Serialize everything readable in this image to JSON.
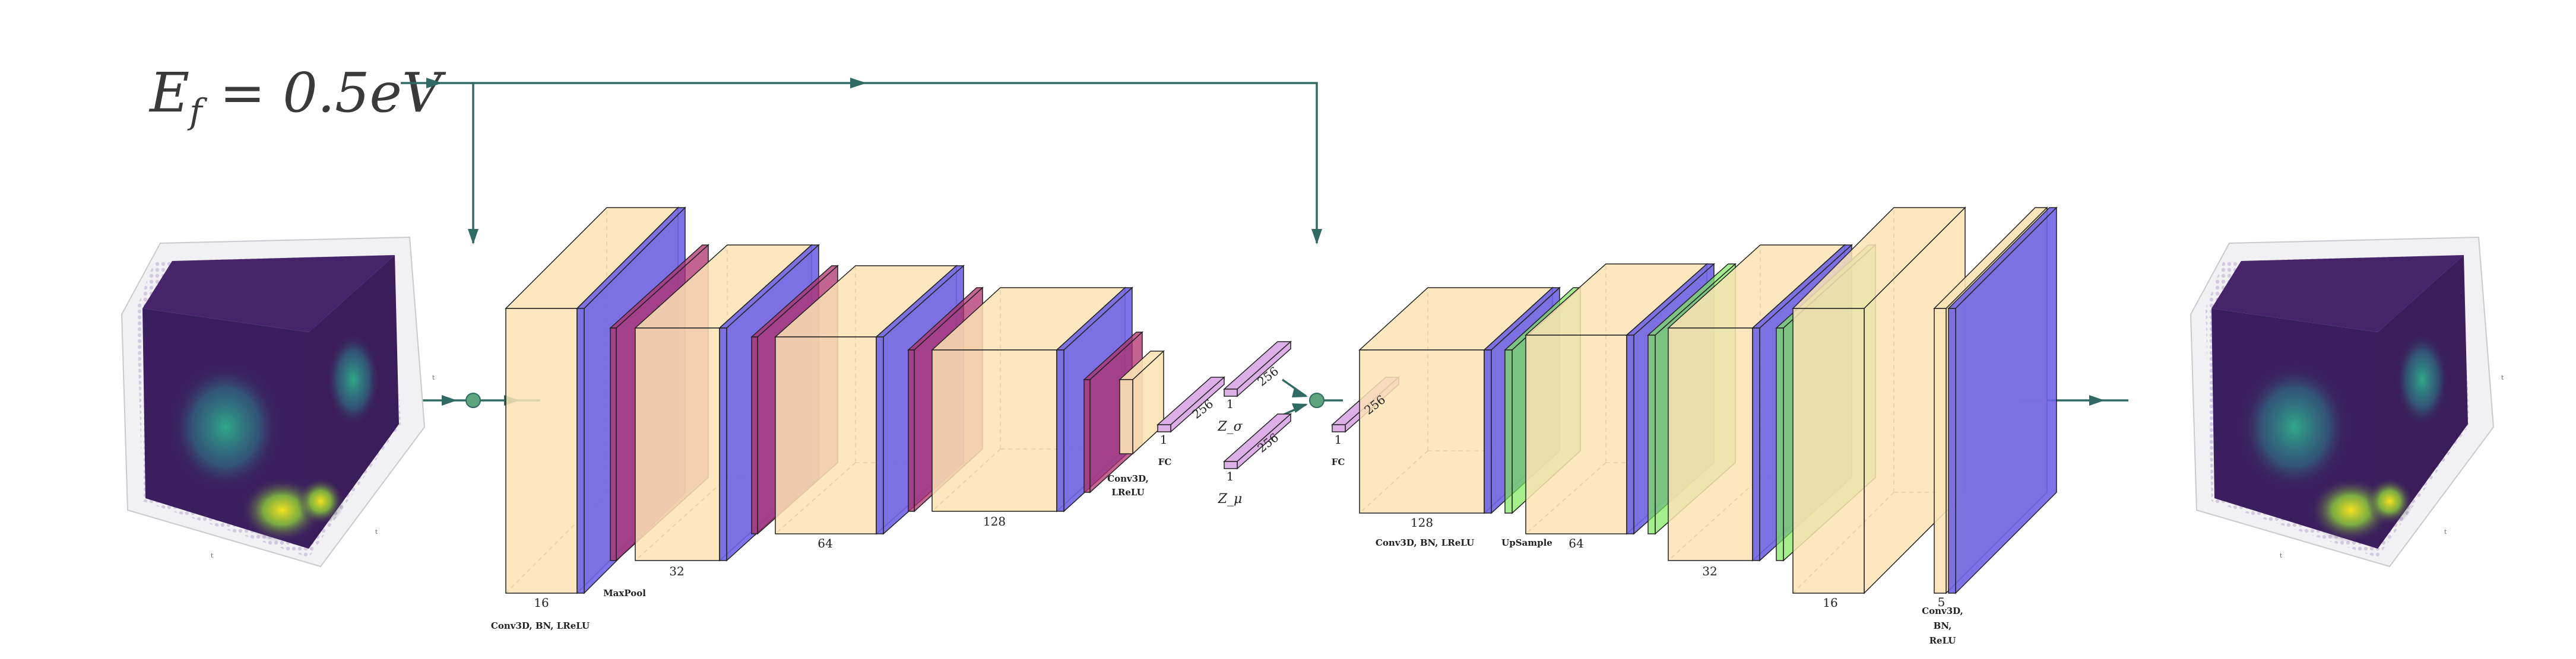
{
  "equation": "E_f = 0.5eV",
  "equation_parts": {
    "main": "E",
    "sub": "f",
    "rest": " = 0.5eV"
  },
  "colors": {
    "arrow": "#2f6b63",
    "conv_block": "#fbe3b4",
    "bn_layer": "#6f63e6",
    "pool_layer": "#b0306b",
    "fc_layer": "#dcb0e6",
    "upsample_layer": "#7ee85a",
    "node": "#5ea57d"
  },
  "encoder": {
    "channels": [
      "16",
      "32",
      "64",
      "128"
    ],
    "conv_label": "Conv3D, BN, LReLU",
    "pool_label": "MaxPool",
    "small_conv_label_1": "Conv3D,",
    "small_conv_label_2": "LReLU",
    "fc_label": "FC",
    "fc_dim_1": "1",
    "fc_dim_256": "256"
  },
  "latent": {
    "z_sigma": "Z_σ",
    "z_mu": "Z_μ",
    "dim_1": "1",
    "dim_256": "256"
  },
  "decoder": {
    "fc_label": "FC",
    "fc_dim_1": "1",
    "fc_dim_256": "256",
    "channels": [
      "128",
      "64",
      "32",
      "16"
    ],
    "conv_label": "Conv3D, BN, LReLU",
    "upsample_label": "UpSample",
    "final_channel": "5",
    "final_label_1": "Conv3D,",
    "final_label_2": "BN,",
    "final_label_3": "ReLU"
  },
  "input_axis_ticks": [
    "t",
    "t",
    "t"
  ],
  "output_axis_ticks": [
    "t",
    "t",
    "t"
  ]
}
